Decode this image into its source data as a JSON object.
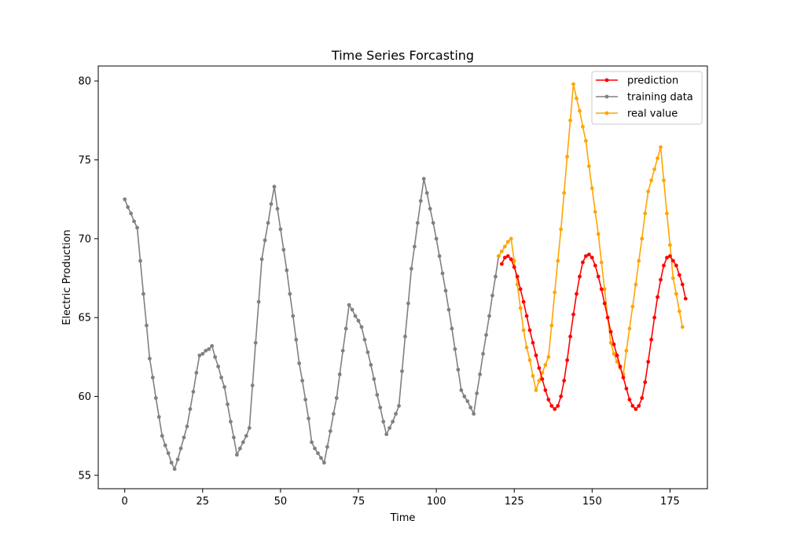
{
  "chart_data": {
    "type": "line",
    "title": "Time Series Forcasting",
    "xlabel": "Time",
    "ylabel": "Electric Production",
    "xlim": [
      -8.5,
      187
    ],
    "ylim": [
      54.15,
      80.95
    ],
    "xticks": [
      0,
      25,
      50,
      75,
      100,
      125,
      150,
      175
    ],
    "yticks": [
      55,
      60,
      65,
      70,
      75,
      80
    ],
    "grid": false,
    "legend_position": "top-right",
    "series": [
      {
        "name": "prediction",
        "color": "#ff0000",
        "x_start": 121,
        "values": [
          68.4,
          68.8,
          68.9,
          68.7,
          68.2,
          67.6,
          66.8,
          66.0,
          65.1,
          64.2,
          63.4,
          62.6,
          61.8,
          61.1,
          60.4,
          59.8,
          59.4,
          59.2,
          59.4,
          60.0,
          61.0,
          62.3,
          63.8,
          65.2,
          66.5,
          67.6,
          68.5,
          68.9,
          69.0,
          68.8,
          68.3,
          67.6,
          66.8,
          65.9,
          65.0,
          64.1,
          63.3,
          62.6,
          61.9,
          61.2,
          60.5,
          59.8,
          59.4,
          59.2,
          59.4,
          59.9,
          60.9,
          62.2,
          63.6,
          65.0,
          66.3,
          67.4,
          68.3,
          68.8,
          68.9,
          68.6,
          68.3,
          67.7,
          67.1,
          66.2
        ]
      },
      {
        "name": "training data",
        "color": "#808080",
        "x_start": 0,
        "values": [
          72.5,
          72.0,
          71.6,
          71.1,
          70.7,
          68.6,
          66.5,
          64.5,
          62.4,
          61.2,
          59.9,
          58.7,
          57.5,
          56.9,
          56.4,
          55.8,
          55.4,
          56.0,
          56.7,
          57.4,
          58.1,
          59.2,
          60.3,
          61.5,
          62.6,
          62.7,
          62.9,
          63.0,
          63.2,
          62.5,
          61.9,
          61.2,
          60.6,
          59.5,
          58.4,
          57.4,
          56.3,
          56.7,
          57.1,
          57.5,
          58.0,
          60.7,
          63.4,
          66.0,
          68.7,
          69.9,
          71.0,
          72.2,
          73.3,
          71.9,
          70.6,
          69.3,
          68.0,
          66.5,
          65.1,
          63.6,
          62.1,
          61.0,
          59.8,
          58.6,
          57.1,
          56.7,
          56.4,
          56.1,
          55.8,
          56.8,
          57.8,
          58.9,
          59.9,
          61.4,
          62.9,
          64.3,
          65.8,
          65.5,
          65.1,
          64.8,
          64.4,
          63.6,
          62.8,
          62.0,
          61.1,
          60.1,
          59.3,
          58.4,
          57.6,
          58.0,
          58.4,
          58.9,
          59.4,
          61.6,
          63.8,
          65.9,
          68.1,
          69.5,
          71.0,
          72.4,
          73.8,
          72.9,
          71.9,
          71.0,
          70.0,
          68.9,
          67.8,
          66.7,
          65.5,
          64.3,
          63.0,
          61.7,
          60.4,
          60.0,
          59.7,
          59.3,
          58.9,
          60.2,
          61.4,
          62.7,
          63.9,
          65.1,
          66.4,
          67.6,
          68.9
        ]
      },
      {
        "name": "real value",
        "color": "#ffa500",
        "x_start": 120,
        "values": [
          68.9,
          69.2,
          69.5,
          69.8,
          70.0,
          68.6,
          67.1,
          65.6,
          64.2,
          63.1,
          62.3,
          61.3,
          60.4,
          61.0,
          61.5,
          62.0,
          62.5,
          64.5,
          66.6,
          68.6,
          70.6,
          72.9,
          75.2,
          77.5,
          79.8,
          78.9,
          78.1,
          77.1,
          76.2,
          74.6,
          73.2,
          71.7,
          70.3,
          68.5,
          66.8,
          65.0,
          63.4,
          62.7,
          62.2,
          61.8,
          61.4,
          62.9,
          64.3,
          65.7,
          67.1,
          68.6,
          70.0,
          71.6,
          73.0,
          73.7,
          74.4,
          75.1,
          75.8,
          73.7,
          71.6,
          69.6,
          67.5,
          66.5,
          65.4,
          64.4
        ]
      }
    ]
  }
}
